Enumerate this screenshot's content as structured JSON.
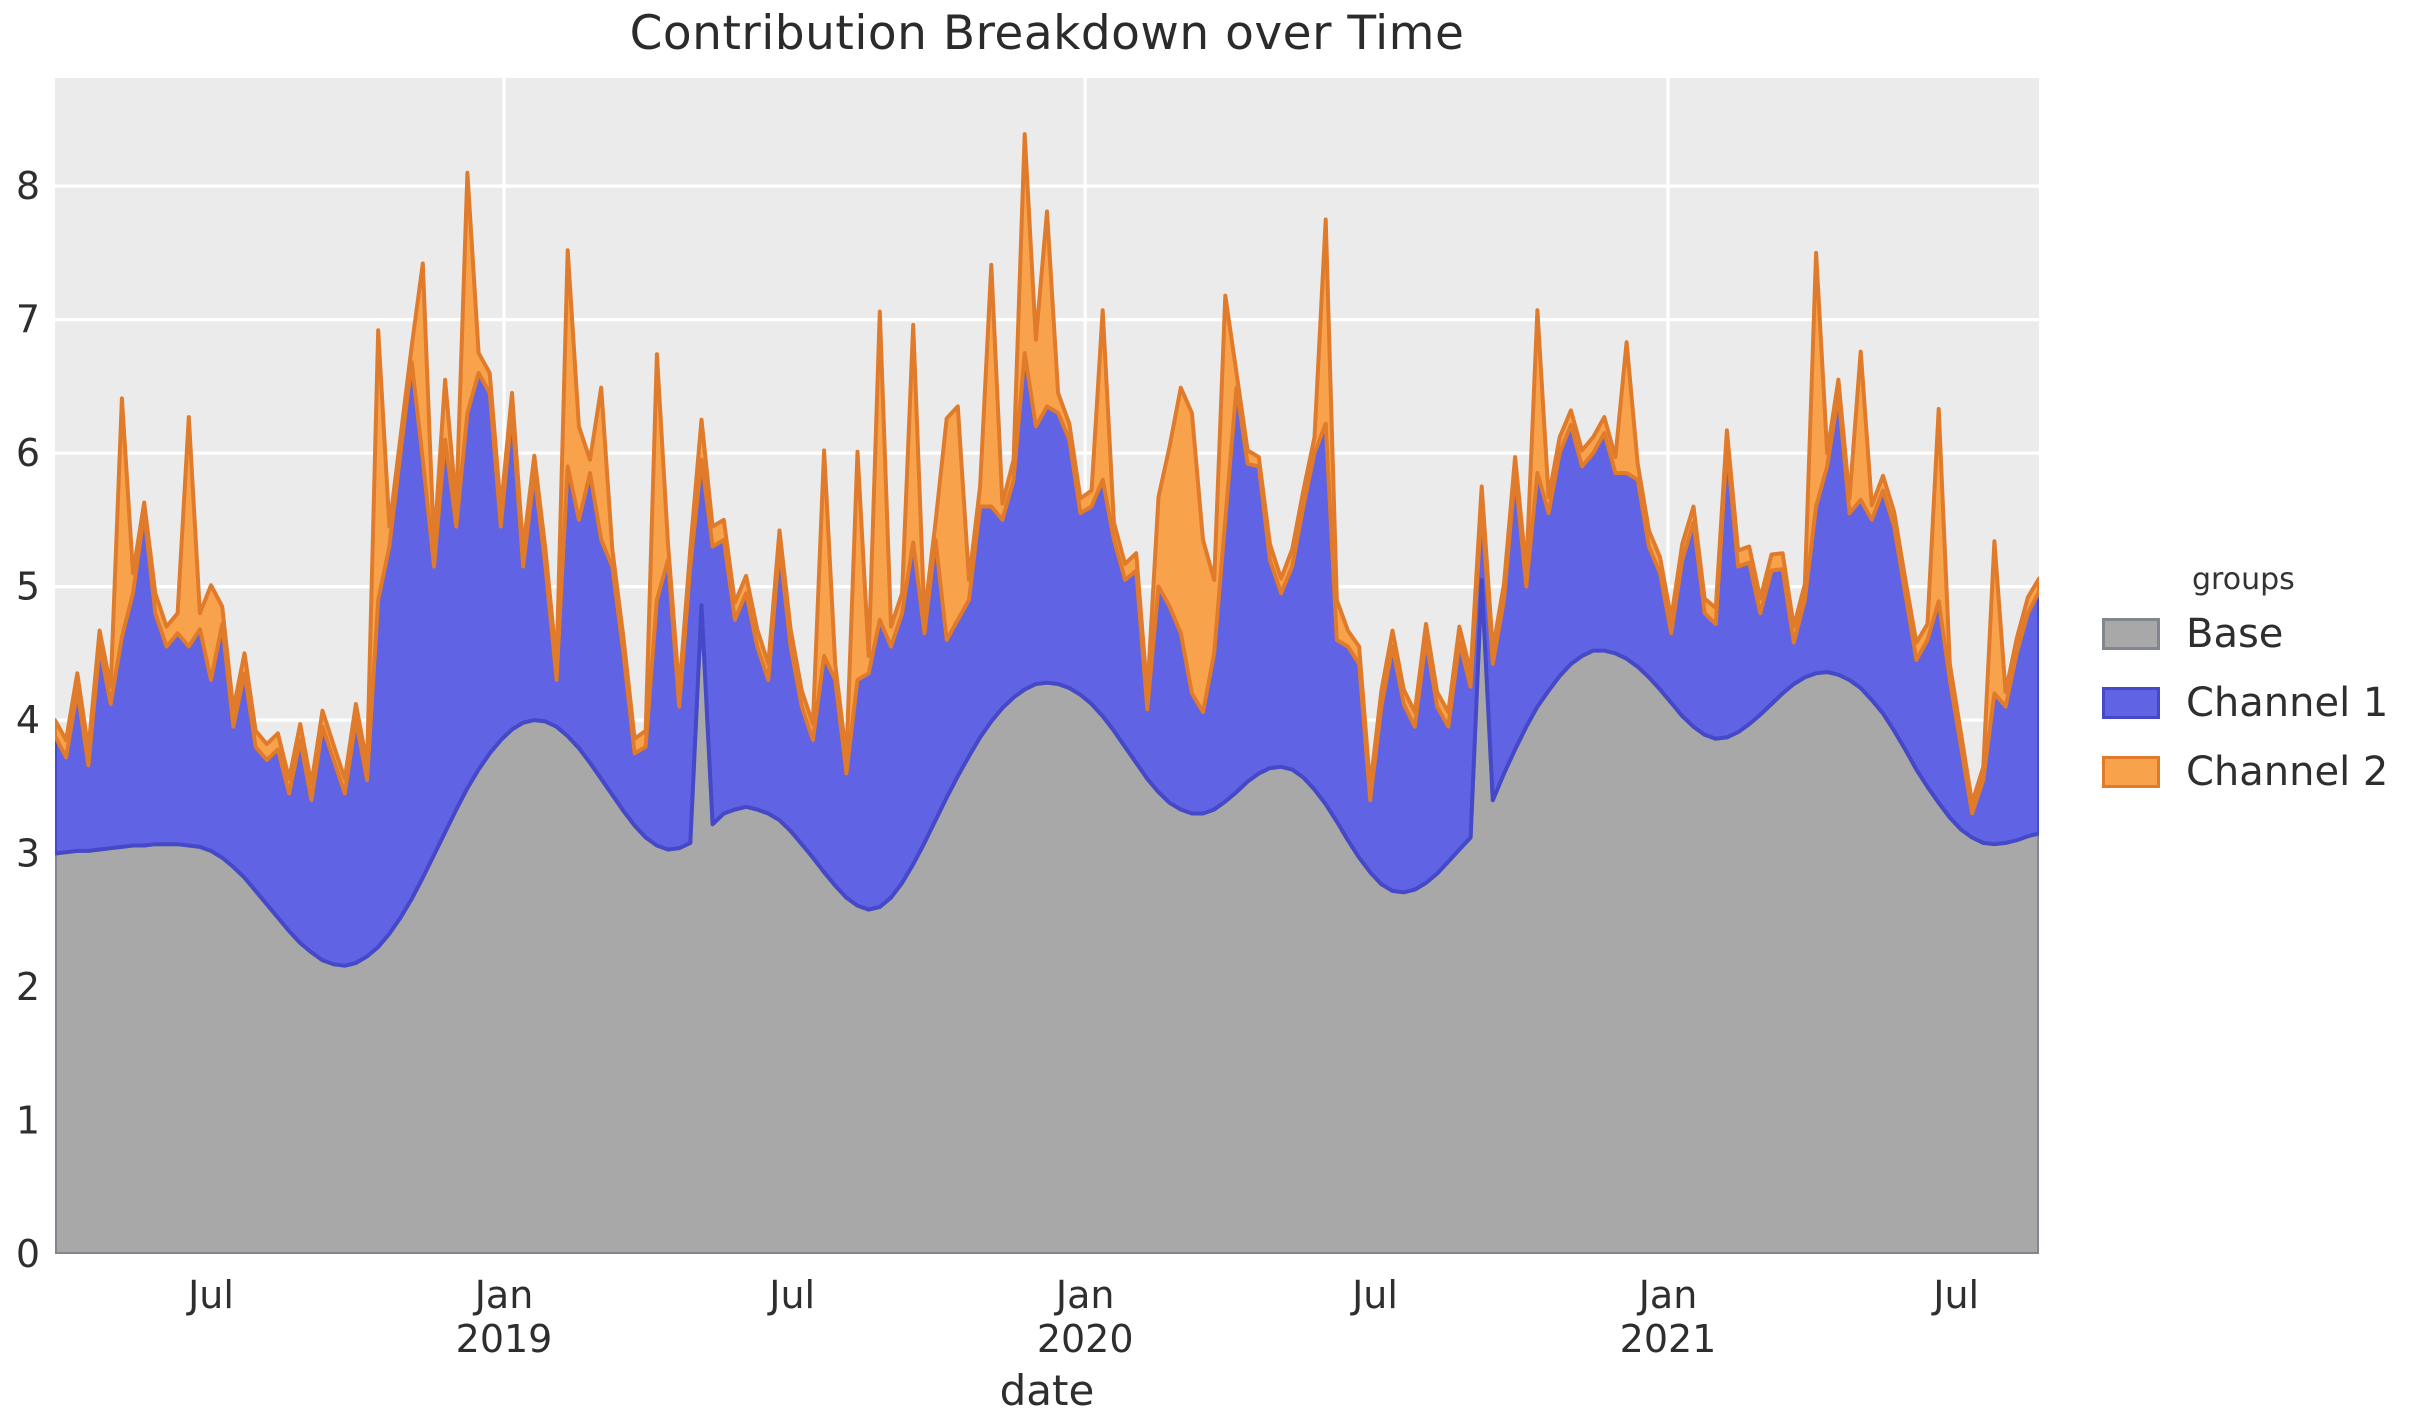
{
  "title": "Contribution Breakdown over Time",
  "x_axis": {
    "label": "date",
    "ticks": [
      {
        "label": "Jul",
        "year": "",
        "day": 98,
        "grid": false
      },
      {
        "label": "Jan",
        "year": "2019",
        "day": 282,
        "grid": true
      },
      {
        "label": "Jul",
        "year": "",
        "day": 463,
        "grid": false
      },
      {
        "label": "Jan",
        "year": "2020",
        "day": 647,
        "grid": true
      },
      {
        "label": "Jul",
        "year": "",
        "day": 829,
        "grid": false
      },
      {
        "label": "Jan",
        "year": "2021",
        "day": 1013,
        "grid": true
      },
      {
        "label": "Jul",
        "year": "",
        "day": 1194,
        "grid": false
      }
    ]
  },
  "y_axis": {
    "ticks": [
      0,
      1,
      2,
      3,
      4,
      5,
      6,
      7,
      8
    ],
    "range": [
      0,
      8.81
    ]
  },
  "legend": {
    "title": "groups",
    "entries": [
      {
        "label": "Base",
        "fill": "#a8a8a8",
        "stroke": "#82868f"
      },
      {
        "label": "Channel 1",
        "fill": "#6064e4",
        "stroke": "#4549c8"
      },
      {
        "label": "Channel 2",
        "fill": "#f9a24c",
        "stroke": "#e07b2b"
      }
    ]
  },
  "colors": {
    "figure_bg": "#ffffff",
    "plot_bg": "#ebebeb",
    "grid": "#ffffff",
    "tick_text": "#2e2e2e"
  },
  "chart_data": {
    "type": "area",
    "stacked": true,
    "title": "Contribution Breakdown over Time",
    "xlabel": "date",
    "ylabel": "",
    "ylim": [
      0,
      8.81
    ],
    "grid": "white-on-gray",
    "legend_position": "right",
    "x_start_date": "2018-03-25",
    "x_interval_days": 7,
    "x_end_date": "2021-08-22",
    "n_points": 179,
    "series": [
      {
        "name": "Base",
        "values": [
          3.0,
          3.01,
          3.02,
          3.02,
          3.03,
          3.04,
          3.05,
          3.06,
          3.06,
          3.07,
          3.07,
          3.07,
          3.06,
          3.05,
          3.02,
          2.97,
          2.9,
          2.82,
          2.72,
          2.62,
          2.52,
          2.42,
          2.33,
          2.26,
          2.2,
          2.17,
          2.16,
          2.18,
          2.23,
          2.3,
          2.4,
          2.52,
          2.66,
          2.82,
          2.99,
          3.16,
          3.33,
          3.49,
          3.63,
          3.75,
          3.85,
          3.93,
          3.98,
          4.0,
          3.99,
          3.95,
          3.88,
          3.79,
          3.68,
          3.56,
          3.44,
          3.32,
          3.21,
          3.12,
          3.06,
          3.03,
          3.04,
          3.08,
          4.86,
          3.22,
          3.3,
          3.33,
          3.35,
          3.33,
          3.3,
          3.25,
          3.17,
          3.07,
          2.97,
          2.86,
          2.76,
          2.67,
          2.61,
          2.58,
          2.6,
          2.67,
          2.78,
          2.92,
          3.08,
          3.25,
          3.42,
          3.58,
          3.73,
          3.87,
          3.99,
          4.09,
          4.17,
          4.23,
          4.27,
          4.28,
          4.27,
          4.24,
          4.19,
          4.12,
          4.03,
          3.92,
          3.8,
          3.68,
          3.56,
          3.46,
          3.38,
          3.33,
          3.3,
          3.3,
          3.33,
          3.39,
          3.46,
          3.54,
          3.6,
          3.64,
          3.65,
          3.63,
          3.57,
          3.48,
          3.37,
          3.24,
          3.1,
          2.97,
          2.86,
          2.77,
          2.72,
          2.71,
          2.73,
          2.78,
          2.85,
          2.94,
          3.03,
          3.12,
          5.05,
          3.4,
          3.6,
          3.78,
          3.95,
          4.1,
          4.22,
          4.33,
          4.42,
          4.48,
          4.52,
          4.52,
          4.5,
          4.46,
          4.4,
          4.32,
          4.23,
          4.13,
          4.03,
          3.95,
          3.89,
          3.86,
          3.87,
          3.91,
          3.97,
          4.04,
          4.12,
          4.2,
          4.27,
          4.32,
          4.35,
          4.36,
          4.34,
          4.3,
          4.24,
          4.15,
          4.05,
          3.92,
          3.78,
          3.63,
          3.5,
          3.38,
          3.27,
          3.18,
          3.12,
          3.08,
          3.07,
          3.08,
          3.1,
          3.13,
          3.15
        ]
      },
      {
        "name": "Channel 1",
        "values": [
          0.88,
          0.71,
          1.2,
          0.64,
          1.52,
          1.08,
          1.57,
          1.89,
          2.49,
          1.73,
          1.48,
          1.58,
          1.49,
          1.63,
          1.28,
          1.75,
          1.05,
          1.53,
          1.08,
          1.08,
          1.26,
          1.03,
          1.52,
          1.14,
          1.75,
          1.53,
          1.29,
          1.82,
          1.32,
          2.6,
          2.9,
          3.48,
          4.02,
          3.13,
          2.16,
          2.94,
          2.12,
          2.81,
          2.97,
          2.7,
          1.6,
          2.39,
          1.17,
          1.85,
          1.16,
          0.35,
          2.02,
          1.71,
          2.17,
          1.79,
          1.71,
          1.18,
          0.54,
          0.68,
          1.84,
          2.17,
          1.06,
          2.07,
          1.09,
          2.08,
          2.05,
          1.42,
          1.6,
          1.22,
          1.0,
          2.05,
          1.38,
          1.03,
          0.88,
          1.62,
          1.54,
          0.93,
          1.69,
          1.77,
          2.15,
          1.88,
          2.02,
          2.41,
          1.57,
          2.1,
          1.18,
          1.17,
          1.17,
          1.73,
          1.61,
          1.41,
          1.63,
          2.52,
          1.93,
          2.07,
          2.03,
          1.86,
          1.36,
          1.48,
          1.77,
          1.43,
          1.25,
          1.44,
          0.52,
          1.54,
          1.47,
          1.32,
          0.9,
          0.76,
          1.17,
          2.11,
          3.03,
          2.38,
          2.3,
          1.56,
          1.3,
          1.52,
          2.03,
          2.52,
          2.85,
          1.36,
          1.45,
          1.45,
          0.54,
          1.33,
          1.83,
          1.41,
          1.22,
          1.82,
          1.25,
          1.01,
          1.55,
          1.13,
          0.55,
          1.02,
          1.3,
          2.07,
          1.05,
          1.75,
          1.33,
          1.67,
          1.79,
          1.42,
          1.48,
          1.63,
          1.35,
          1.39,
          1.4,
          0.98,
          0.87,
          0.52,
          1.17,
          1.53,
          0.91,
          0.86,
          2.18,
          1.24,
          1.21,
          0.76,
          1.0,
          0.93,
          0.31,
          0.58,
          1.25,
          1.54,
          2.1,
          1.25,
          1.41,
          1.35,
          1.67,
          1.53,
          1.17,
          0.82,
          1.1,
          1.51,
          1.03,
          0.62,
          0.18,
          0.47,
          1.13,
          1.02,
          1.4,
          1.67,
          1.81
        ]
      },
      {
        "name": "Channel 2",
        "values": [
          0.12,
          0.13,
          0.13,
          0.12,
          0.12,
          0.13,
          1.79,
          0.15,
          0.08,
          0.15,
          0.15,
          0.15,
          1.72,
          0.12,
          0.71,
          0.13,
          0.13,
          0.15,
          0.12,
          0.12,
          0.12,
          0.11,
          0.12,
          0.12,
          0.12,
          0.11,
          0.11,
          0.12,
          0.12,
          2.02,
          0.15,
          0.12,
          0.12,
          1.47,
          0.15,
          0.45,
          0.15,
          1.8,
          0.15,
          0.15,
          0.13,
          0.13,
          0.13,
          0.13,
          0.13,
          0.12,
          1.62,
          0.7,
          0.1,
          1.14,
          0.13,
          0.12,
          0.11,
          0.12,
          1.84,
          0.12,
          0.12,
          0.13,
          0.3,
          0.15,
          0.15,
          0.13,
          0.13,
          0.13,
          0.12,
          0.12,
          0.13,
          0.12,
          0.12,
          1.54,
          0.12,
          0.12,
          1.71,
          0.13,
          2.31,
          0.15,
          0.15,
          1.63,
          0.13,
          0.13,
          1.66,
          1.6,
          0.15,
          0.15,
          1.81,
          0.12,
          0.15,
          1.64,
          0.65,
          1.46,
          0.15,
          0.12,
          0.11,
          0.12,
          1.27,
          0.13,
          0.12,
          0.13,
          0.12,
          0.67,
          1.2,
          1.84,
          2.1,
          1.29,
          0.55,
          1.68,
          0.11,
          0.1,
          0.07,
          0.12,
          0.11,
          0.13,
          0.12,
          0.12,
          1.53,
          0.3,
          0.12,
          0.13,
          0.1,
          0.12,
          0.12,
          0.11,
          0.11,
          0.12,
          0.11,
          0.11,
          0.12,
          0.11,
          0.15,
          0.11,
          0.12,
          0.12,
          0.12,
          1.22,
          0.12,
          0.12,
          0.11,
          0.12,
          0.12,
          0.12,
          0.12,
          0.98,
          0.12,
          0.12,
          0.12,
          0.11,
          0.12,
          0.12,
          0.11,
          0.12,
          0.12,
          0.12,
          0.12,
          0.11,
          0.12,
          0.12,
          0.12,
          0.12,
          1.9,
          0.1,
          0.11,
          0.11,
          1.11,
          0.11,
          0.11,
          0.11,
          0.11,
          0.13,
          0.12,
          1.44,
          0.12,
          0.1,
          0.08,
          0.1,
          1.14,
          0.11,
          0.11,
          0.12,
          0.1
        ]
      }
    ]
  }
}
